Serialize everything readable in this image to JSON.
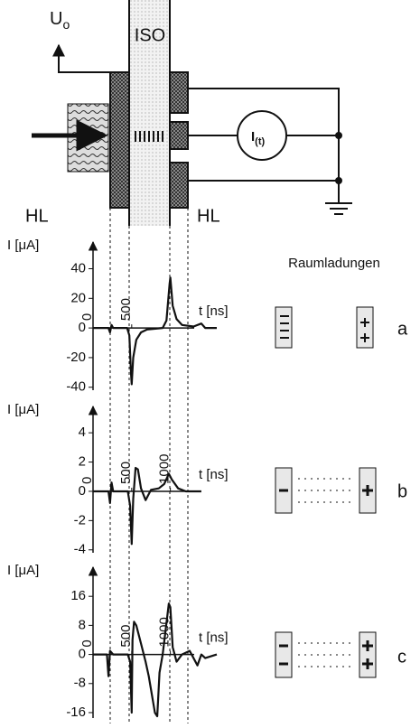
{
  "diagram": {
    "u_main": "U",
    "u_sub": "o",
    "iso": "ISO",
    "hl_left": "HL",
    "hl_right": "HL",
    "i_main": "I",
    "i_sub": "(t)"
  },
  "side": {
    "title": "Raumladungen",
    "labels": [
      "a",
      "b",
      "c"
    ]
  },
  "chart_data": [
    {
      "type": "line",
      "y_label": "I [μA]",
      "x_label": "t [ns]",
      "color": "#111",
      "x": [
        0,
        200,
        220,
        240,
        260,
        440,
        470,
        490,
        500,
        520,
        560,
        620,
        700,
        900,
        950,
        990,
        1000,
        1030,
        1080,
        1150,
        1300,
        1400,
        1450,
        1600
      ],
      "values": [
        0,
        0,
        -3,
        2,
        0,
        0,
        -5,
        -30,
        -38,
        -20,
        -8,
        -3,
        -1,
        0,
        5,
        30,
        34,
        15,
        6,
        2,
        1,
        3,
        0,
        0
      ],
      "xlim": [
        0,
        1600
      ],
      "xticks": [
        0,
        500
      ],
      "ylim": [
        -42,
        58
      ],
      "yticks": [
        40,
        20,
        0,
        -20,
        -40
      ]
    },
    {
      "type": "line",
      "y_label": "I [μA]",
      "x_label": "t [ns]",
      "color": "#111",
      "x": [
        0,
        200,
        220,
        240,
        260,
        450,
        480,
        500,
        520,
        550,
        580,
        620,
        680,
        750,
        850,
        920,
        980,
        1020,
        1100,
        1200,
        1400
      ],
      "values": [
        0,
        0,
        -0.8,
        0.6,
        0,
        0,
        -1,
        -3.6,
        -0.5,
        1.6,
        1.5,
        0.2,
        -0.6,
        0.1,
        0.2,
        0.5,
        1.2,
        0.8,
        0.2,
        0,
        0
      ],
      "xlim": [
        0,
        1600
      ],
      "xticks": [
        0,
        500,
        1000
      ],
      "ylim": [
        -4.2,
        5.8
      ],
      "yticks": [
        4,
        2,
        0,
        -2,
        -4
      ]
    },
    {
      "type": "line",
      "y_label": "I [μA]",
      "x_label": "t [ns]",
      "color": "#111",
      "x": [
        0,
        180,
        200,
        220,
        260,
        450,
        480,
        500,
        510,
        530,
        560,
        620,
        680,
        720,
        760,
        800,
        830,
        860,
        900,
        980,
        1000,
        1030,
        1080,
        1150,
        1250,
        1350,
        1400,
        1450,
        1600
      ],
      "values": [
        0,
        0,
        -6,
        1,
        0,
        0,
        -2,
        -16,
        4,
        9,
        8,
        3,
        -2,
        -6,
        -11,
        -16,
        -17,
        -5,
        0,
        14,
        13,
        2,
        -2,
        0,
        1,
        -3,
        0,
        -1,
        0
      ],
      "xlim": [
        0,
        1600
      ],
      "xticks": [
        0,
        500,
        1000
      ],
      "ylim": [
        -17.5,
        24
      ],
      "yticks": [
        16,
        8,
        0,
        -8,
        -16
      ]
    }
  ]
}
